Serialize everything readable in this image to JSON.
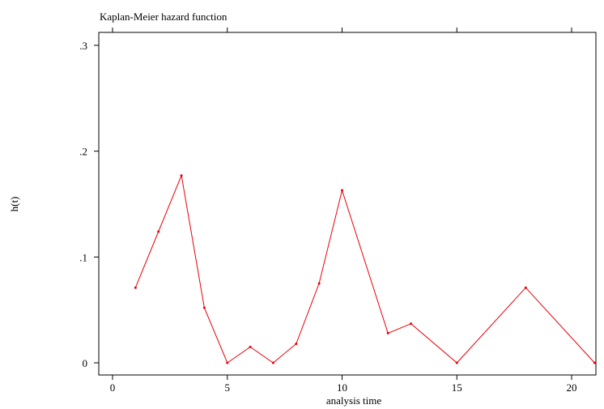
{
  "chart_data": {
    "type": "line",
    "title": "Kaplan-Meier hazard function",
    "xlabel": "analysis time",
    "ylabel": "h(t)",
    "xlim": [
      0,
      21
    ],
    "ylim": [
      0,
      0.3
    ],
    "x_ticks": [
      {
        "value": 0,
        "label": "0"
      },
      {
        "value": 5,
        "label": "5"
      },
      {
        "value": 10,
        "label": "10"
      },
      {
        "value": 15,
        "label": "15"
      },
      {
        "value": 20,
        "label": "20"
      }
    ],
    "y_ticks": [
      {
        "value": 0,
        "label": "0"
      },
      {
        "value": 0.1,
        "label": ".1"
      },
      {
        "value": 0.2,
        "label": ".2"
      },
      {
        "value": 0.3,
        "label": ".3"
      }
    ],
    "grid": false,
    "line_color": "#e8000b",
    "series": [
      {
        "x": [
          1,
          2,
          3,
          4,
          5,
          6,
          7,
          8,
          9,
          10,
          12,
          13,
          15,
          18,
          21
        ],
        "y": [
          0.071,
          0.124,
          0.177,
          0.052,
          0.0,
          0.015,
          0.0,
          0.018,
          0.075,
          0.163,
          0.028,
          0.037,
          0.0,
          0.071,
          0.0
        ]
      }
    ]
  }
}
